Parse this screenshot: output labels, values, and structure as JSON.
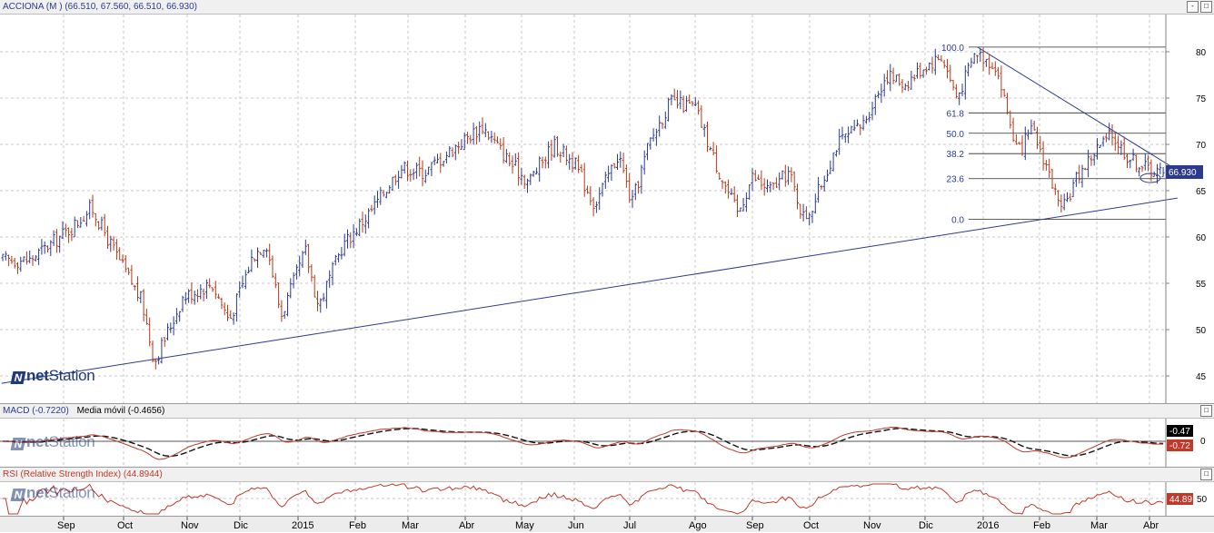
{
  "main_panel": {
    "title": "ACCIONA (M ) (66.510, 67.560, 66.510, 66.930)",
    "last_price": "66.930",
    "y_ticks": [
      "80",
      "75",
      "70",
      "65",
      "60",
      "55",
      "50",
      "45"
    ],
    "fib_labels": [
      "100.0",
      "61.8",
      "50.0",
      "38.2",
      "23.6",
      "0.0"
    ]
  },
  "macd_panel": {
    "title": "MACD (-0.7220)",
    "ma_label": "Media móvil (-0.4656)",
    "value_ma": "-0.47",
    "value_macd": "-0.72",
    "zero_tick": "0"
  },
  "rsi_panel": {
    "title": "RSI (Relative Strength Index) (44.8944)",
    "value": "44.89",
    "tick": "50"
  },
  "logo": {
    "mark": "N",
    "prefix": "net",
    "suffix": "Station"
  },
  "window_buttons": {
    "minimize": "-",
    "maximize": "□"
  },
  "x_axis": {
    "labels": [
      "Sep",
      "Oct",
      "Nov",
      "Dic",
      "2015",
      "Feb",
      "Mar",
      "Abr",
      "May",
      "Jun",
      "Jul",
      "Ago",
      "Sep",
      "Oct",
      "Nov",
      "Dic",
      "2016",
      "Feb",
      "Mar",
      "Abr"
    ]
  },
  "colors": {
    "price_up": "#2b3a8f",
    "price_down": "#b33a1a",
    "trendline": "#2b3a8f",
    "macd_line": "#c0392b",
    "signal_line": "#111111",
    "rsi_line": "#c0392b",
    "grid": "#c8c8c8"
  },
  "chart_data": [
    {
      "type": "ohlc",
      "title": "ACCIONA (M ) (66.510, 67.560, 66.510, 66.930)",
      "last": {
        "open": 66.51,
        "high": 67.56,
        "low": 66.51,
        "close": 66.93
      },
      "x_labels": [
        "Sep",
        "Oct",
        "Nov",
        "Dic",
        "2015",
        "Feb",
        "Mar",
        "Abr",
        "May",
        "Jun",
        "Jul",
        "Ago",
        "Sep",
        "Oct",
        "Nov",
        "Dic",
        "2016",
        "Feb",
        "Mar",
        "Abr"
      ],
      "ylim": [
        42.5,
        82.5
      ],
      "yticks": [
        45,
        50,
        55,
        60,
        65,
        70,
        75,
        80
      ],
      "close_path": [
        {
          "date": "2014-08-15",
          "close": 57.5
        },
        {
          "date": "2014-09-05",
          "close": 61
        },
        {
          "date": "2014-09-15",
          "close": 63.2
        },
        {
          "date": "2014-09-25",
          "close": 59
        },
        {
          "date": "2014-10-10",
          "close": 53
        },
        {
          "date": "2014-10-16",
          "close": 46.5
        },
        {
          "date": "2014-10-30",
          "close": 53.5
        },
        {
          "date": "2014-11-15",
          "close": 55
        },
        {
          "date": "2014-11-25",
          "close": 51
        },
        {
          "date": "2014-12-08",
          "close": 58
        },
        {
          "date": "2014-12-15",
          "close": 59.5
        },
        {
          "date": "2014-12-23",
          "close": 51.5
        },
        {
          "date": "2015-01-05",
          "close": 58.5
        },
        {
          "date": "2015-01-12",
          "close": 52.5
        },
        {
          "date": "2015-01-25",
          "close": 59
        },
        {
          "date": "2015-02-10",
          "close": 63
        },
        {
          "date": "2015-02-25",
          "close": 67.5
        },
        {
          "date": "2015-03-10",
          "close": 67
        },
        {
          "date": "2015-03-25",
          "close": 69.5
        },
        {
          "date": "2015-04-10",
          "close": 72
        },
        {
          "date": "2015-04-25",
          "close": 68
        },
        {
          "date": "2015-05-05",
          "close": 66
        },
        {
          "date": "2015-05-20",
          "close": 70
        },
        {
          "date": "2015-06-01",
          "close": 68
        },
        {
          "date": "2015-06-12",
          "close": 63.5
        },
        {
          "date": "2015-06-25",
          "close": 69
        },
        {
          "date": "2015-07-02",
          "close": 63.5
        },
        {
          "date": "2015-07-10",
          "close": 70
        },
        {
          "date": "2015-07-20",
          "close": 74.5
        },
        {
          "date": "2015-08-01",
          "close": 74
        },
        {
          "date": "2015-08-12",
          "close": 68
        },
        {
          "date": "2015-08-24",
          "close": 62.5
        },
        {
          "date": "2015-09-01",
          "close": 66.5
        },
        {
          "date": "2015-09-10",
          "close": 65
        },
        {
          "date": "2015-09-20",
          "close": 67
        },
        {
          "date": "2015-09-28",
          "close": 62
        },
        {
          "date": "2015-10-03",
          "close": 63.5
        },
        {
          "date": "2015-10-15",
          "close": 70
        },
        {
          "date": "2015-10-28",
          "close": 72
        },
        {
          "date": "2015-11-10",
          "close": 77.5
        },
        {
          "date": "2015-11-20",
          "close": 76.5
        },
        {
          "date": "2015-12-01",
          "close": 78.5
        },
        {
          "date": "2015-12-10",
          "close": 79.5
        },
        {
          "date": "2015-12-18",
          "close": 75
        },
        {
          "date": "2015-12-28",
          "close": 80
        },
        {
          "date": "2016-01-08",
          "close": 78.5
        },
        {
          "date": "2016-01-20",
          "close": 69
        },
        {
          "date": "2016-01-28",
          "close": 71.5
        },
        {
          "date": "2016-02-05",
          "close": 67.5
        },
        {
          "date": "2016-02-12",
          "close": 62.5
        },
        {
          "date": "2016-02-20",
          "close": 66.5
        },
        {
          "date": "2016-03-01",
          "close": 69.5
        },
        {
          "date": "2016-03-10",
          "close": 71
        },
        {
          "date": "2016-03-20",
          "close": 68.5
        },
        {
          "date": "2016-03-30",
          "close": 67.5
        },
        {
          "date": "2016-04-08",
          "close": 66.93
        }
      ],
      "trendlines": [
        {
          "from": {
            "date": "2014-08-01",
            "value": 44.2
          },
          "to": {
            "date": "2016-04-15",
            "value": 64.2
          }
        },
        {
          "from": {
            "date": "2015-12-29",
            "value": 80.5
          },
          "to": {
            "date": "2016-04-15",
            "value": 67.2
          }
        }
      ],
      "fibonacci": {
        "high": 80.5,
        "low": 61.9,
        "levels": [
          {
            "label": "100.0",
            "value": 80.5
          },
          {
            "label": "61.8",
            "value": 73.4
          },
          {
            "label": "50.0",
            "value": 71.2
          },
          {
            "label": "38.2",
            "value": 69.0
          },
          {
            "label": "23.6",
            "value": 66.3
          },
          {
            "label": "0.0",
            "value": 61.9
          }
        ]
      }
    },
    {
      "type": "line",
      "title": "MACD (-0.7220)",
      "series": [
        {
          "name": "MACD (-0.7220)",
          "last": -0.722
        },
        {
          "name": "Media móvil (-0.4656)",
          "last": -0.4656
        }
      ],
      "yticks": [
        0
      ]
    },
    {
      "type": "line",
      "title": "RSI (Relative Strength Index) (44.8944)",
      "series": [
        {
          "name": "RSI (Relative Strength Index) (44.8944)",
          "last": 44.8944
        }
      ],
      "yticks": [
        50
      ]
    }
  ]
}
